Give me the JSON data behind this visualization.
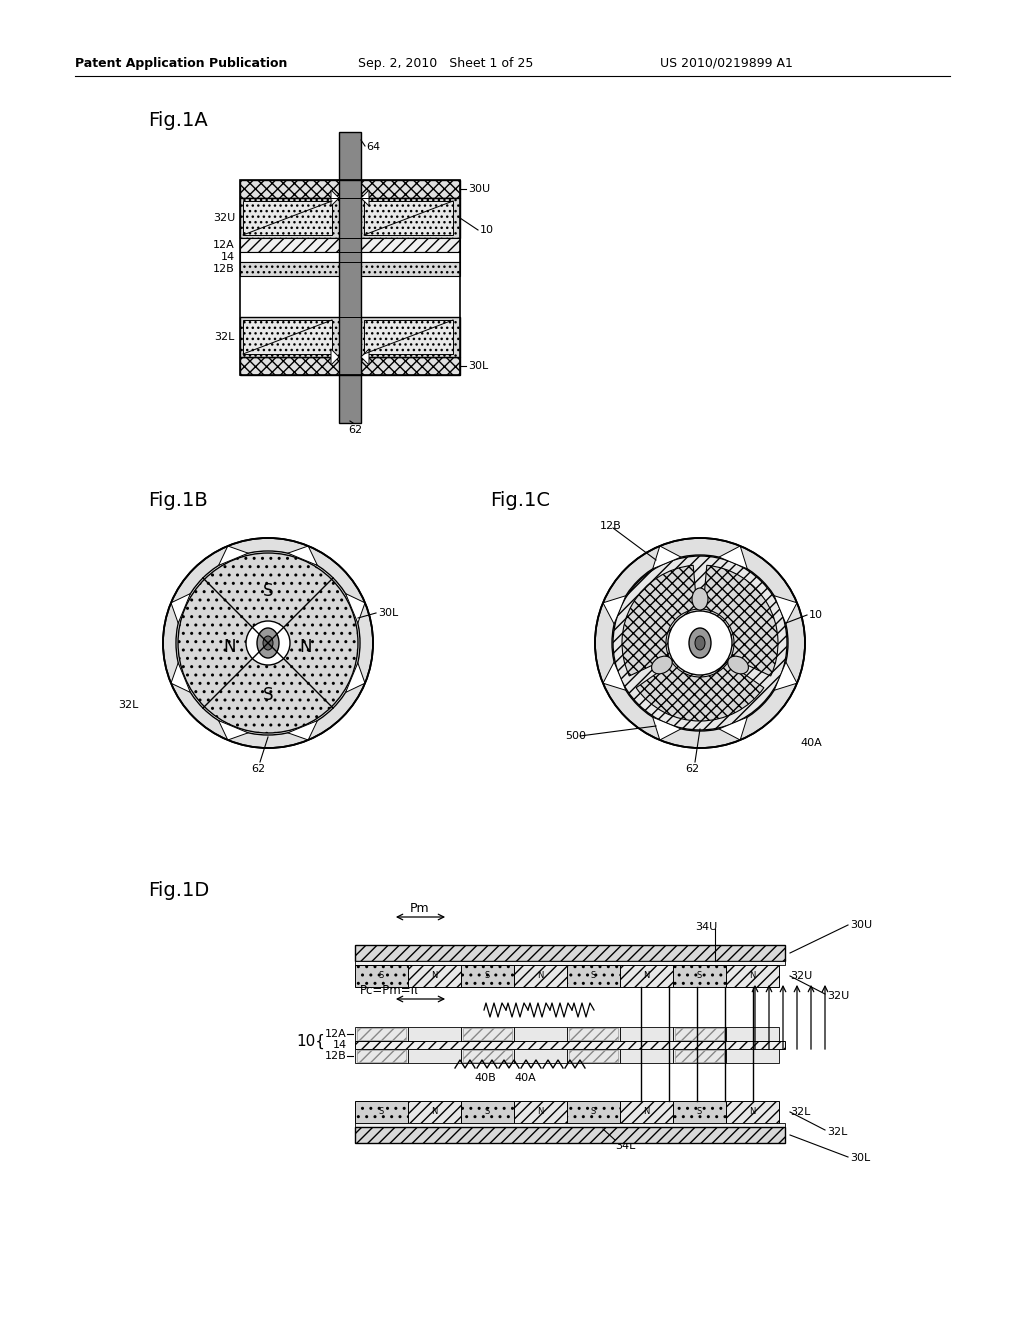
{
  "bg_color": "#ffffff",
  "header_left": "Patent Application Publication",
  "header_mid": "Sep. 2, 2010   Sheet 1 of 25",
  "header_right": "US 2010/0219899 A1",
  "fig1A_label": "Fig.1A",
  "fig1B_label": "Fig.1B",
  "fig1C_label": "Fig.1C",
  "fig1D_label": "Fig.1D"
}
